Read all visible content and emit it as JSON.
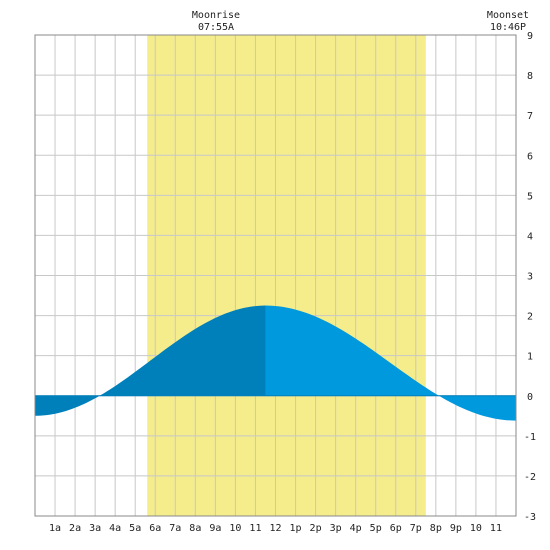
{
  "chart_data": {
    "type": "area",
    "x_unit": "hour of day",
    "xlim": [
      0,
      24
    ],
    "ylim": [
      -3,
      9
    ],
    "y_ticks": [
      -3,
      -2,
      -1,
      0,
      1,
      2,
      3,
      4,
      5,
      6,
      7,
      8,
      9
    ],
    "x_tick_labels": [
      {
        "x": 1,
        "label": "1a"
      },
      {
        "x": 2,
        "label": "2a"
      },
      {
        "x": 3,
        "label": "3a"
      },
      {
        "x": 4,
        "label": "4a"
      },
      {
        "x": 5,
        "label": "5a"
      },
      {
        "x": 6,
        "label": "6a"
      },
      {
        "x": 7,
        "label": "7a"
      },
      {
        "x": 8,
        "label": "8a"
      },
      {
        "x": 9,
        "label": "9a"
      },
      {
        "x": 10,
        "label": "10"
      },
      {
        "x": 11,
        "label": "11"
      },
      {
        "x": 12,
        "label": "12"
      },
      {
        "x": 13,
        "label": "1p"
      },
      {
        "x": 14,
        "label": "2p"
      },
      {
        "x": 15,
        "label": "3p"
      },
      {
        "x": 16,
        "label": "4p"
      },
      {
        "x": 17,
        "label": "5p"
      },
      {
        "x": 18,
        "label": "6p"
      },
      {
        "x": 19,
        "label": "7p"
      },
      {
        "x": 20,
        "label": "8p"
      },
      {
        "x": 21,
        "label": "9p"
      },
      {
        "x": 22,
        "label": "10"
      },
      {
        "x": 23,
        "label": "11"
      }
    ],
    "tide_extremes": [
      {
        "x": 0.0,
        "y": -0.5
      },
      {
        "x": 11.5,
        "y": 2.25
      },
      {
        "x": 24.0,
        "y": -0.62
      }
    ],
    "daylight": {
      "start": 5.6,
      "end": 19.5
    },
    "moonrise": {
      "label": "Moonrise",
      "time": "07:55A"
    },
    "moonset": {
      "label": "Moonset",
      "time": "10:46P"
    },
    "colors": {
      "daylight": "#f5ec8c",
      "grid": "#c8c8c8",
      "frame": "#888888",
      "tide_rising": "#0080bb",
      "tide_falling": "#0099dd"
    }
  }
}
